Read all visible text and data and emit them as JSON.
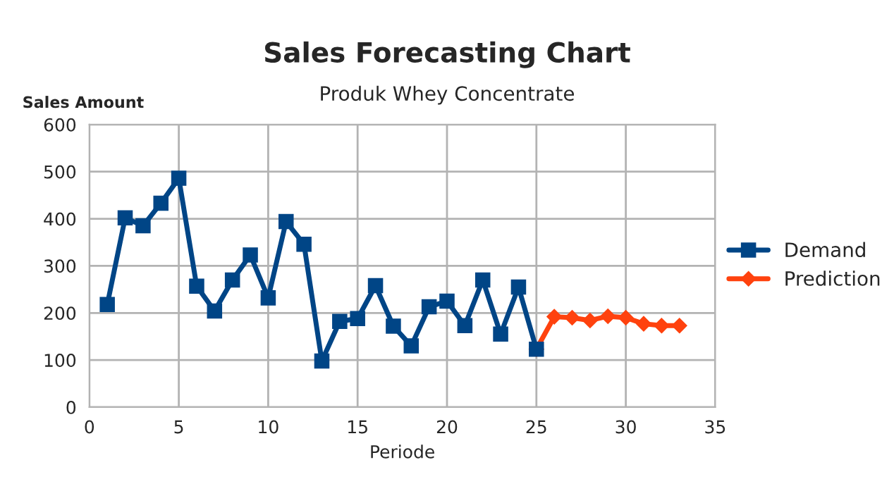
{
  "chart_data": {
    "type": "line",
    "title": "Sales Forecasting Chart",
    "subtitle": "Produk Whey Concentrate",
    "xlabel": "Periode",
    "ylabel": "Sales Amount",
    "xlim": [
      0,
      35
    ],
    "xticks": [
      0,
      5,
      10,
      15,
      20,
      25,
      30,
      35
    ],
    "ylim": [
      0,
      600
    ],
    "yticks": [
      0,
      100,
      200,
      300,
      400,
      500,
      600
    ],
    "grid": true,
    "legend": "right",
    "line_style": "solid",
    "series": [
      {
        "name": "Demand",
        "color": "#004586",
        "marker": "square",
        "x": [
          1,
          2,
          3,
          4,
          5,
          6,
          7,
          8,
          9,
          10,
          11,
          12,
          13,
          14,
          15,
          16,
          17,
          18,
          19,
          20,
          21,
          22,
          23,
          24,
          25
        ],
        "values": [
          218,
          402,
          385,
          433,
          486,
          257,
          204,
          270,
          323,
          232,
          394,
          346,
          98,
          182,
          188,
          258,
          172,
          130,
          213,
          225,
          173,
          270,
          155,
          255,
          123
        ]
      },
      {
        "name": "Prediction",
        "color": "#ff420e",
        "marker": "diamond",
        "x": [
          25,
          26,
          27,
          28,
          29,
          30,
          31,
          32,
          33
        ],
        "values": [
          123,
          192,
          190,
          184,
          193,
          190,
          177,
          173,
          173
        ]
      }
    ]
  }
}
